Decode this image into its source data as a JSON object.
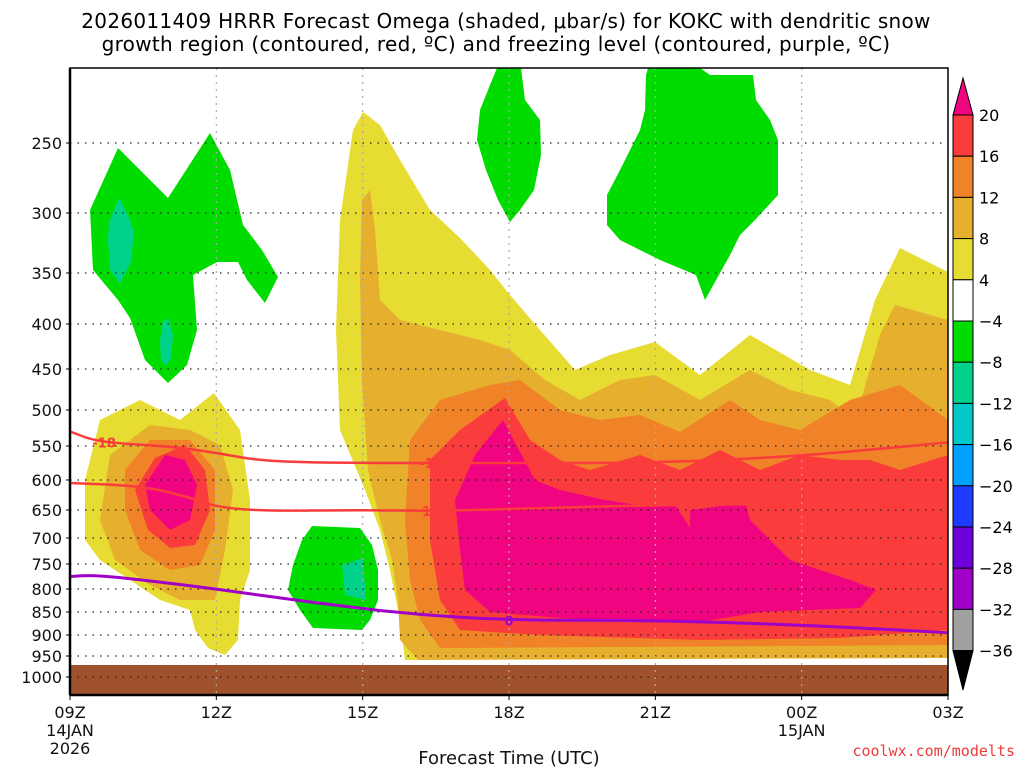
{
  "chart_data": {
    "type": "heatmap",
    "title_line1": "2026011409 HRRR Forecast Omega (shaded, μbar/s) for KOKC with dendritic snow",
    "title_line2": "growth region (contoured, red, ºC) and freezing level (contoured, purple, ºC)",
    "xlabel": "Forecast Time (UTC)",
    "ylabel": "",
    "credit": "coolwx.com/modelts",
    "x_ticks": [
      {
        "label": "09Z",
        "sub": [
          "14JAN",
          "2026"
        ],
        "hour": 0
      },
      {
        "label": "12Z",
        "sub": [],
        "hour": 3
      },
      {
        "label": "15Z",
        "sub": [],
        "hour": 6
      },
      {
        "label": "18Z",
        "sub": [],
        "hour": 9
      },
      {
        "label": "21Z",
        "sub": [],
        "hour": 12
      },
      {
        "label": "00Z",
        "sub": [
          "15JAN"
        ],
        "hour": 15
      },
      {
        "label": "03Z",
        "sub": [],
        "hour": 18
      }
    ],
    "x_range_hours": [
      0,
      18
    ],
    "y_ticks": [
      "250",
      "300",
      "350",
      "400",
      "450",
      "500",
      "550",
      "600",
      "650",
      "700",
      "750",
      "800",
      "850",
      "900",
      "950",
      "1000"
    ],
    "y_axis": "pressure (hPa), inverted",
    "grid": true,
    "colorbar": {
      "levels": [
        "20",
        "16",
        "12",
        "8",
        "4",
        "−4",
        "−8",
        "−12",
        "−16",
        "−20",
        "−24",
        "−28",
        "−32",
        "−36"
      ],
      "top_arrow_color": "#f0047f",
      "bottom_arrow_color": "#000000",
      "bins": [
        {
          "range": "16 to 20",
          "color": "#fa3c3c"
        },
        {
          "range": "12 to 16",
          "color": "#f08228"
        },
        {
          "range": "8 to 12",
          "color": "#e6af2d"
        },
        {
          "range": "4 to 8",
          "color": "#e6dc32"
        },
        {
          "range": "-4 to 4",
          "color": "#ffffff"
        },
        {
          "range": "-8 to -4",
          "color": "#00dc00"
        },
        {
          "range": "-12 to -8",
          "color": "#00d28c"
        },
        {
          "range": "-16 to -12",
          "color": "#00c8c8"
        },
        {
          "range": "-20 to -16",
          "color": "#00a0ff"
        },
        {
          "range": "-24 to -20",
          "color": "#1e3cff"
        },
        {
          "range": "-28 to -24",
          "color": "#6e00dc"
        },
        {
          "range": "-32 to -28",
          "color": "#a000c8"
        },
        {
          "range": "-36 to -32",
          "color": "#a0a0a0"
        }
      ]
    },
    "ground_color": "#a0522d",
    "contours": [
      {
        "name": "dendritic-minus18",
        "label": "-18",
        "color": "#fa3c3c",
        "points": [
          [
            0,
            530
          ],
          [
            0.6,
            545
          ],
          [
            2,
            550
          ],
          [
            3,
            560
          ],
          [
            4,
            573
          ],
          [
            6,
            575
          ],
          [
            7.5,
            575
          ],
          [
            9,
            575
          ],
          [
            12,
            575
          ],
          [
            15,
            565
          ],
          [
            18,
            545
          ]
        ]
      },
      {
        "name": "dendritic-minus12",
        "label": "12",
        "color": "#fa3c3c",
        "points": [
          [
            0,
            605
          ],
          [
            1.5,
            610
          ],
          [
            2.5,
            630
          ],
          [
            3,
            645
          ],
          [
            4,
            652
          ],
          [
            6,
            650
          ],
          [
            7.5,
            652
          ],
          [
            9,
            648
          ],
          [
            12,
            642
          ],
          [
            14.5,
            640
          ]
        ]
      },
      {
        "name": "freezing-level-0",
        "label": "0",
        "color": "#a000c8",
        "points": [
          [
            0,
            775
          ],
          [
            0.5,
            772
          ],
          [
            1.5,
            782
          ],
          [
            3,
            800
          ],
          [
            5,
            830
          ],
          [
            7,
            855
          ],
          [
            9,
            868
          ],
          [
            12,
            868
          ],
          [
            15,
            878
          ],
          [
            18,
            895
          ]
        ]
      }
    ],
    "shaded_features": [
      {
        "desc": "upward motion core (>20 μbar/s)",
        "approx_time_hours": [
          1.5,
          2.7
        ],
        "approx_pressure": [
          560,
          680
        ]
      },
      {
        "desc": "strong upward motion core (>20 μbar/s)",
        "approx_time_hours": [
          8,
          17
        ],
        "approx_pressure": [
          540,
          840
        ]
      },
      {
        "desc": "sinking (-4 to -8)",
        "approx_time_hours": [
          1.1,
          4.3
        ],
        "approx_pressure": [
          240,
          460
        ]
      },
      {
        "desc": "sinking (-4 to -8)",
        "approx_time_hours": [
          8.7,
          9.7
        ],
        "approx_pressure": [
          200,
          310
        ]
      },
      {
        "desc": "sinking (-4 to -8)",
        "approx_time_hours": [
          11.7,
          14.4
        ],
        "approx_pressure": [
          200,
          390
        ]
      },
      {
        "desc": "sinking (-4 to -12)",
        "approx_time_hours": [
          4.5,
          6.2
        ],
        "approx_pressure": [
          680,
          880
        ]
      }
    ]
  }
}
